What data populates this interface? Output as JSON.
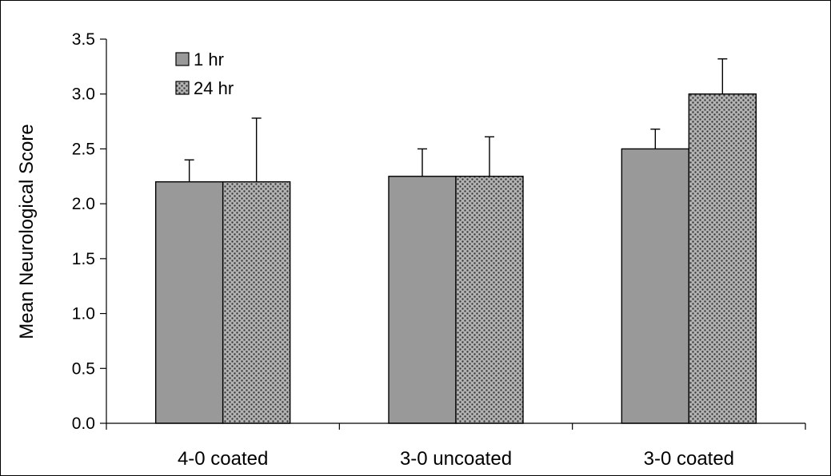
{
  "chart_data": {
    "type": "bar",
    "title": "",
    "xlabel": "",
    "ylabel": "Mean Neurological Score",
    "ylim": [
      0,
      3.5
    ],
    "yticks": [
      "0.0",
      "0.5",
      "1.0",
      "1.5",
      "2.0",
      "2.5",
      "3.0",
      "3.5"
    ],
    "categories": [
      "4-0 coated",
      "3-0 uncoated",
      "3-0 coated"
    ],
    "series": [
      {
        "name": "1 hr",
        "values": [
          2.2,
          2.25,
          2.5
        ],
        "errors": [
          0.2,
          0.25,
          0.18
        ],
        "color": "#999999",
        "pattern": "solid"
      },
      {
        "name": "24 hr",
        "values": [
          2.2,
          2.25,
          3.0
        ],
        "errors": [
          0.58,
          0.36,
          0.32
        ],
        "color": "#999999",
        "pattern": "dots"
      }
    ],
    "legend_position": "top-left",
    "grid": false
  }
}
